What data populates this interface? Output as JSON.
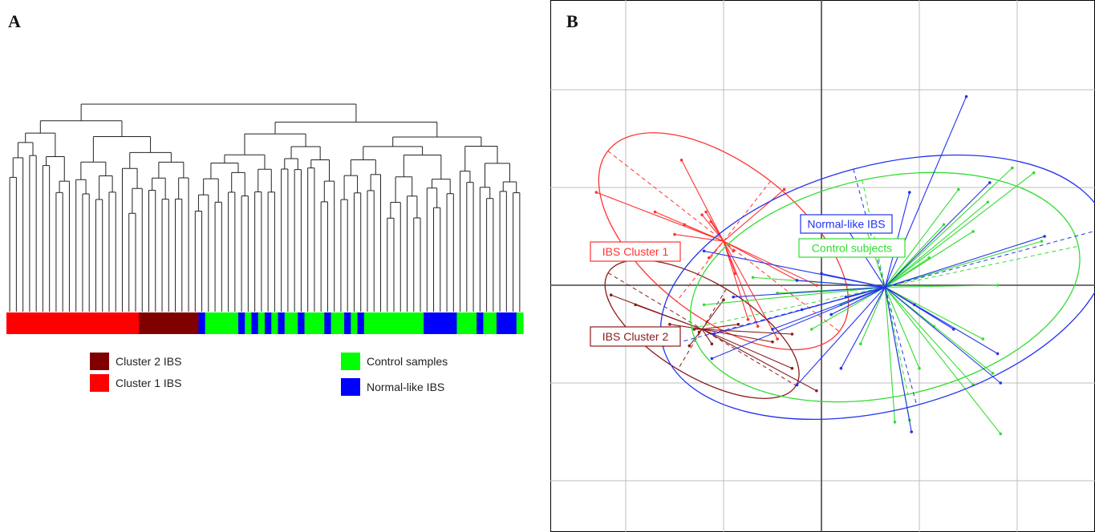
{
  "panels": {
    "a_letter": "A",
    "b_letter": "B"
  },
  "legend": {
    "cluster2": {
      "label": "Cluster 2 IBS",
      "color": "#800000"
    },
    "cluster1": {
      "label": "Cluster 1 IBS",
      "color": "#ff0000"
    },
    "control": {
      "label": "Control samples",
      "color": "#00ff00"
    },
    "normal": {
      "label": "Normal-like IBS",
      "color": "#0000ff"
    }
  },
  "chart_data": [
    {
      "type": "dendrogram",
      "panel": "A",
      "leaf_groups": [
        "C1",
        "C1",
        "C1",
        "C1",
        "C1",
        "C1",
        "C1",
        "C1",
        "C1",
        "C1",
        "C1",
        "C1",
        "C1",
        "C1",
        "C1",
        "C1",
        "C1",
        "C1",
        "C1",
        "C1",
        "C2",
        "C2",
        "C2",
        "C2",
        "C2",
        "C2",
        "C2",
        "C2",
        "C2",
        "N",
        "C",
        "C",
        "C",
        "C",
        "C",
        "N",
        "C",
        "N",
        "C",
        "N",
        "C",
        "N",
        "C",
        "C",
        "N",
        "C",
        "C",
        "C",
        "N",
        "C",
        "C",
        "N",
        "C",
        "N",
        "C",
        "C",
        "C",
        "C",
        "C",
        "C",
        "C",
        "C",
        "C",
        "N",
        "N",
        "N",
        "N",
        "N",
        "C",
        "C",
        "C",
        "N",
        "C",
        "C",
        "N",
        "N",
        "N",
        "C"
      ],
      "group_colors": {
        "C1": "#ff0000",
        "C2": "#800000",
        "C": "#00ff00",
        "N": "#0000ff"
      }
    },
    {
      "type": "scatter",
      "panel": "B",
      "grid": true,
      "groups": [
        {
          "name": "IBS Cluster 1",
          "color": "#ff3333",
          "centroid": [
            -1.0,
            0.45
          ],
          "ellipse": {
            "rx": 1.5,
            "ry": 0.78,
            "angle": 38
          },
          "points": [
            [
              -2.3,
              0.95
            ],
            [
              -1.43,
              1.28
            ],
            [
              -1.18,
              0.75
            ],
            [
              -1.13,
              0.65
            ],
            [
              -1.22,
              0.72
            ],
            [
              -1.4,
              0.62
            ],
            [
              -1.7,
              0.75
            ],
            [
              -0.38,
              0.98
            ],
            [
              -0.25,
              0.05
            ],
            [
              -0.65,
              -0.42
            ],
            [
              -0.9,
              0.35
            ],
            [
              -1.5,
              0.52
            ],
            [
              -0.88,
              0.12
            ],
            [
              -0.05,
              0.0
            ],
            [
              -0.45,
              -0.55
            ],
            [
              -0.75,
              -0.35
            ],
            [
              -1.15,
              0.28
            ]
          ]
        },
        {
          "name": "IBS Cluster 2",
          "color": "#8b1a1a",
          "centroid": [
            -1.22,
            -0.45
          ],
          "ellipse": {
            "rx": 1.12,
            "ry": 0.48,
            "angle": 31
          },
          "points": [
            [
              -2.15,
              -0.1
            ],
            [
              -1.9,
              -0.2
            ],
            [
              -1.0,
              -0.15
            ],
            [
              -0.85,
              -0.4
            ],
            [
              -1.3,
              -0.45
            ],
            [
              -1.12,
              -0.6
            ],
            [
              -1.35,
              -0.62
            ],
            [
              -0.5,
              -0.58
            ],
            [
              -0.3,
              -0.5
            ],
            [
              -0.05,
              -1.08
            ],
            [
              -0.3,
              -0.85
            ],
            [
              -1.25,
              -0.48
            ],
            [
              -1.55,
              -0.4
            ]
          ]
        },
        {
          "name": "Control subjects",
          "color": "#33dd33",
          "centroid": [
            0.65,
            -0.02
          ],
          "ellipse": {
            "rx": 2.02,
            "ry": 1.12,
            "angle": -12
          },
          "points": [
            [
              1.95,
              1.2
            ],
            [
              2.17,
              1.15
            ],
            [
              1.4,
              0.98
            ],
            [
              1.55,
              0.55
            ],
            [
              1.25,
              0.62
            ],
            [
              2.25,
              0.45
            ],
            [
              1.8,
              0.0
            ],
            [
              1.65,
              -0.55
            ],
            [
              1.55,
              -1.02
            ],
            [
              1.75,
              -0.9
            ],
            [
              0.9,
              -1.38
            ],
            [
              1.83,
              -1.52
            ],
            [
              1.15,
              -0.42
            ],
            [
              0.75,
              -1.4
            ],
            [
              1.0,
              -0.85
            ],
            [
              0.2,
              -0.2
            ],
            [
              -0.1,
              -0.45
            ],
            [
              -1.2,
              -0.2
            ],
            [
              -0.45,
              -0.08
            ],
            [
              -0.7,
              0.08
            ],
            [
              0.4,
              -0.6
            ],
            [
              1.1,
              0.28
            ],
            [
              0.45,
              0.6
            ],
            [
              1.7,
              0.85
            ]
          ]
        },
        {
          "name": "Normal-like IBS",
          "color": "#2233ee",
          "centroid": [
            0.65,
            -0.02
          ],
          "ellipse": {
            "rx": 2.35,
            "ry": 1.25,
            "angle": -15
          },
          "points": [
            [
              1.48,
              1.93
            ],
            [
              0.9,
              0.95
            ],
            [
              1.72,
              1.05
            ],
            [
              2.28,
              0.5
            ],
            [
              0.0,
              0.12
            ],
            [
              -0.25,
              0.05
            ],
            [
              -1.2,
              0.35
            ],
            [
              0.25,
              -0.12
            ],
            [
              0.95,
              -0.2
            ],
            [
              1.8,
              -0.7
            ],
            [
              1.83,
              -1.0
            ],
            [
              1.35,
              -0.45
            ],
            [
              0.92,
              -1.5
            ],
            [
              -0.25,
              -1.02
            ],
            [
              -1.1,
              -0.5
            ],
            [
              -1.12,
              -0.75
            ],
            [
              -0.5,
              -0.45
            ],
            [
              0.1,
              -0.3
            ],
            [
              -0.2,
              -0.25
            ],
            [
              0.28,
              0.55
            ],
            [
              0.2,
              -0.85
            ],
            [
              -0.9,
              -0.12
            ]
          ]
        }
      ]
    }
  ]
}
